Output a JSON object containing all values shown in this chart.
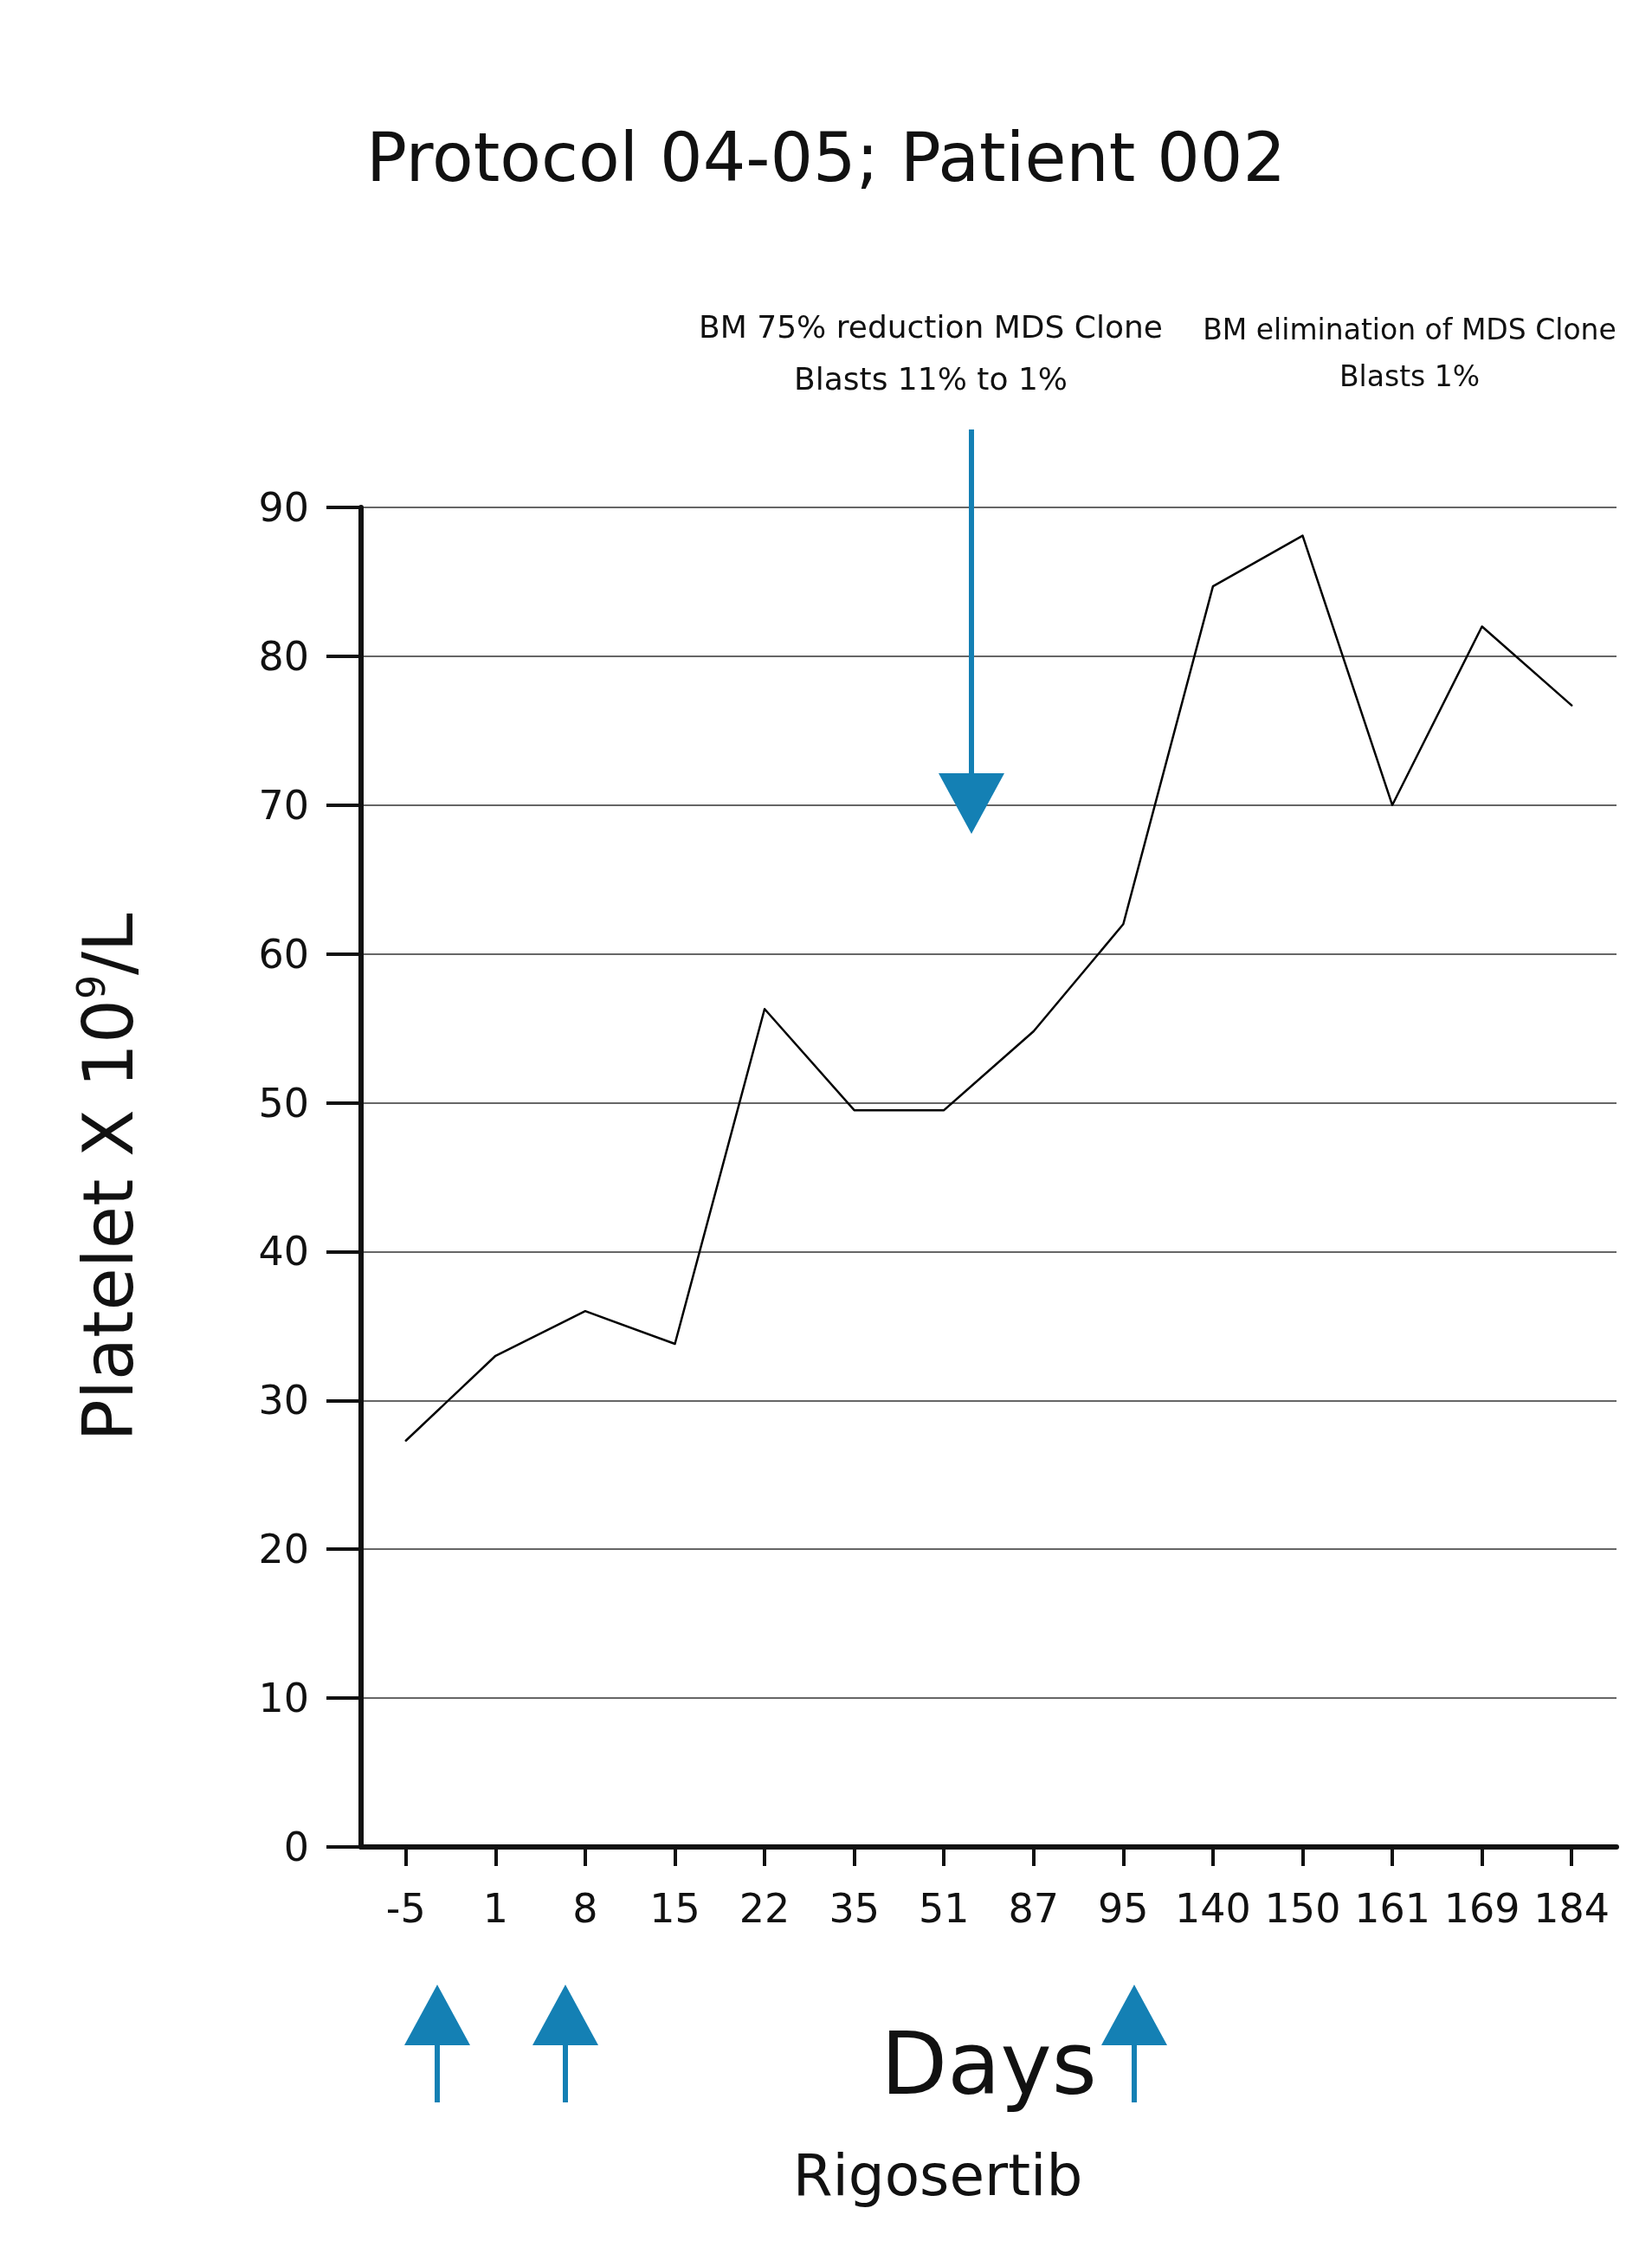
{
  "chart_data": {
    "type": "line",
    "title": "Protocol 04-05; Patient 002",
    "xlabel": "Days",
    "ylabel": "Platelet X 10$^{9}$/L",
    "categories": [
      "-5",
      "1",
      "8",
      "15",
      "22",
      "35",
      "51",
      "87",
      "95",
      "140",
      "150",
      "161",
      "169",
      "184"
    ],
    "series": [
      {
        "color": "#000000",
        "values": [
          27.3,
          33,
          36,
          33.8,
          56.3,
          49.5,
          49.5,
          54.8,
          62,
          84.7,
          88.1,
          70,
          82,
          76.7
        ]
      }
    ],
    "ylim": [
      0,
      90
    ],
    "yticks": [
      0,
      10,
      20,
      30,
      40,
      50,
      60,
      70,
      80,
      90
    ],
    "grid": "y",
    "marker": "none",
    "line_style": "solid",
    "annotations": [
      "BM 75% reduction MDS Clone\nBlasts 11% to 1%",
      "BM elimination of MDS Clone\nBlasts 1%",
      "Rigosertib"
    ]
  }
}
